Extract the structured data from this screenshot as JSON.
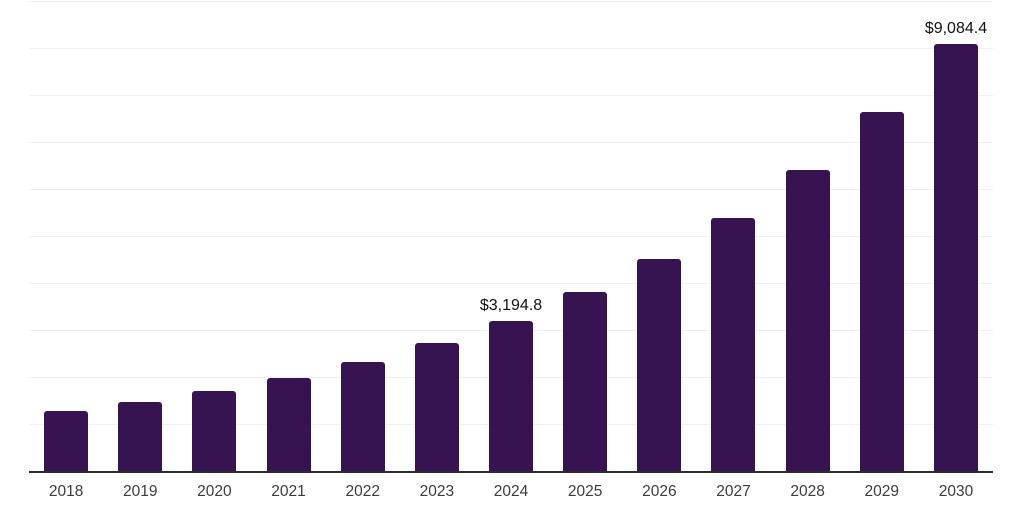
{
  "chart_data": {
    "type": "bar",
    "title": "",
    "xlabel": "",
    "ylabel": "",
    "categories": [
      "2018",
      "2019",
      "2020",
      "2021",
      "2022",
      "2023",
      "2024",
      "2025",
      "2026",
      "2027",
      "2028",
      "2029",
      "2030"
    ],
    "values": [
      1280,
      1470,
      1710,
      1970,
      2320,
      2730,
      3194.8,
      3800,
      4520,
      5390,
      6410,
      7630,
      9084.4
    ],
    "value_labels": [
      "",
      "",
      "",
      "",
      "",
      "",
      "$3,194.8",
      "",
      "",
      "",
      "",
      "",
      "$9,084.4"
    ],
    "ylim": [
      0,
      10000
    ],
    "grid_interval": 1000,
    "grid": "horizontal",
    "legend": "none",
    "colors": {
      "bar": "#371352",
      "gridline": "#f0f0f0",
      "axis_line": "#2d2d2d",
      "tick_label": "#3c3c3c",
      "value_label": "#111111",
      "background": "#ffffff"
    }
  }
}
